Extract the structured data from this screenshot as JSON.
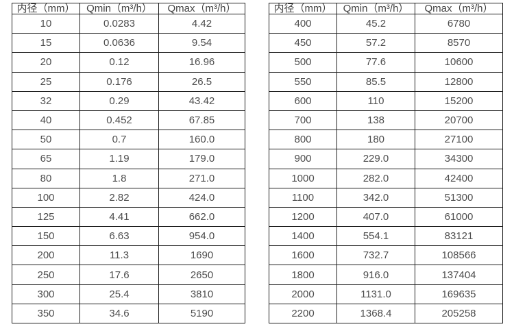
{
  "colors": {
    "background": "#ffffff",
    "border": "#1e1e1e",
    "header_text": "#434343",
    "cell_text": "#4d4d4d"
  },
  "tables": [
    {
      "name": "spec-table-small-diameters",
      "headers": [
        "内径（mm）",
        "Qmin（m³/h）",
        "Qmax（m³/h）"
      ],
      "rows": [
        [
          "10",
          "0.0283",
          "4.42"
        ],
        [
          "15",
          "0.0636",
          "9.54"
        ],
        [
          "20",
          "0.12",
          "16.96"
        ],
        [
          "25",
          "0.176",
          "26.5"
        ],
        [
          "32",
          "0.29",
          "43.42"
        ],
        [
          "40",
          "0.452",
          "67.85"
        ],
        [
          "50",
          "0.7",
          "160.0"
        ],
        [
          "65",
          "1.19",
          "179.0"
        ],
        [
          "80",
          "1.8",
          "271.0"
        ],
        [
          "100",
          "2.82",
          "424.0"
        ],
        [
          "125",
          "4.41",
          "662.0"
        ],
        [
          "150",
          "6.63",
          "954.0"
        ],
        [
          "200",
          "11.3",
          "1690"
        ],
        [
          "250",
          "17.6",
          "2650"
        ],
        [
          "300",
          "25.4",
          "3810"
        ],
        [
          "350",
          "34.6",
          "5190"
        ]
      ]
    },
    {
      "name": "spec-table-large-diameters",
      "headers": [
        "内径（mm）",
        "Qmin（m³/h）",
        "Qmax（m³/h）"
      ],
      "rows": [
        [
          "400",
          "45.2",
          "6780"
        ],
        [
          "450",
          "57.2",
          "8570"
        ],
        [
          "500",
          "77.6",
          "10600"
        ],
        [
          "550",
          "85.5",
          "12800"
        ],
        [
          "600",
          "110",
          "15200"
        ],
        [
          "700",
          "138",
          "20700"
        ],
        [
          "800",
          "180",
          "27100"
        ],
        [
          "900",
          "229.0",
          "34300"
        ],
        [
          "1000",
          "282.0",
          "42400"
        ],
        [
          "1100",
          "342.0",
          "51300"
        ],
        [
          "1200",
          "407.0",
          "61000"
        ],
        [
          "1400",
          "554.1",
          "83121"
        ],
        [
          "1600",
          "732.7",
          "108566"
        ],
        [
          "1800",
          "916.0",
          "137404"
        ],
        [
          "2000",
          "1131.0",
          "169635"
        ],
        [
          "2200",
          "1368.4",
          "205258"
        ]
      ]
    }
  ]
}
